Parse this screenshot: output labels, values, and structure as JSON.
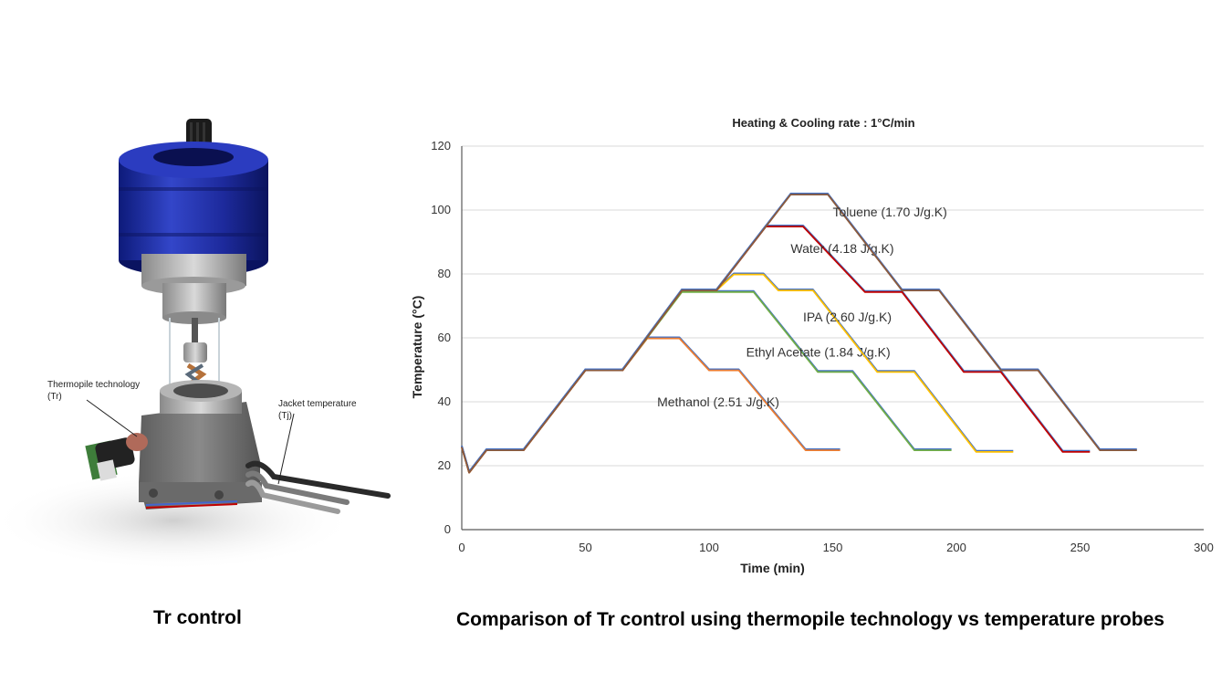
{
  "illustration": {
    "label_thermopile": [
      "Thermopile technology",
      "(Tr)"
    ],
    "label_jacket": [
      "Jacket temperature",
      "(Tj)"
    ],
    "colors": {
      "jacket_blue": "#1d2a9c",
      "body_gray": "#6e6e6e",
      "pcb_green": "#3e7d3a"
    }
  },
  "captions": {
    "left": "Tr control",
    "right": "Comparison of Tr control using thermopile technology vs temperature probes"
  },
  "chart_data": {
    "type": "line",
    "title": "Heating & Cooling rate : 1°C/min",
    "xlabel": "Time (min)",
    "ylabel": "Temperature (°C)",
    "xlim": [
      0,
      300
    ],
    "ylim": [
      0,
      120
    ],
    "xticks": [
      0,
      50,
      100,
      150,
      200,
      250,
      300
    ],
    "yticks": [
      0,
      20,
      40,
      60,
      80,
      100,
      120
    ],
    "grid": "horizontal",
    "legend": "none",
    "series": [
      {
        "name": "Methanol (2.51 J/g.K)",
        "colors": [
          "#4472c4",
          "#ed7d31"
        ],
        "label_at": [
          79,
          40
        ],
        "points": [
          [
            0,
            26
          ],
          [
            3,
            18
          ],
          [
            10,
            25
          ],
          [
            25,
            25
          ],
          [
            50,
            50
          ],
          [
            65,
            50
          ],
          [
            75,
            60
          ],
          [
            88,
            60
          ],
          [
            100,
            50
          ],
          [
            112,
            50
          ],
          [
            139,
            25
          ],
          [
            153,
            25
          ]
        ]
      },
      {
        "name": "Ethyl Acetate (1.84 J/g.K)",
        "colors": [
          "#4472c4",
          "#70ad47"
        ],
        "label_at": [
          115,
          55.6
        ],
        "points": [
          [
            0,
            26
          ],
          [
            3,
            18
          ],
          [
            10,
            25
          ],
          [
            25,
            25
          ],
          [
            50,
            50
          ],
          [
            65,
            50
          ],
          [
            89,
            74.5
          ],
          [
            101,
            74.5
          ],
          [
            118,
            74.5
          ],
          [
            144,
            49.5
          ],
          [
            158,
            49.5
          ],
          [
            183,
            25
          ],
          [
            198,
            25
          ]
        ]
      },
      {
        "name": "IPA (2.60 J/g.K)",
        "colors": [
          "#4472c4",
          "#ffc000"
        ],
        "label_at": [
          138,
          66.6
        ],
        "points": [
          [
            0,
            26
          ],
          [
            3,
            18
          ],
          [
            10,
            25
          ],
          [
            25,
            25
          ],
          [
            50,
            50
          ],
          [
            65,
            50
          ],
          [
            89,
            75
          ],
          [
            103,
            75
          ],
          [
            110,
            80
          ],
          [
            122,
            80
          ],
          [
            128,
            75
          ],
          [
            142,
            75
          ],
          [
            168,
            49.5
          ],
          [
            183,
            49.5
          ],
          [
            208,
            24.5
          ],
          [
            223,
            24.5
          ]
        ]
      },
      {
        "name": "Water (4.18 J/g.K)",
        "colors": [
          "#4472c4",
          "#c00000"
        ],
        "label_at": [
          133,
          88
        ],
        "points": [
          [
            0,
            26
          ],
          [
            3,
            18
          ],
          [
            10,
            25
          ],
          [
            25,
            25
          ],
          [
            50,
            50
          ],
          [
            65,
            50
          ],
          [
            89,
            75
          ],
          [
            103,
            75
          ],
          [
            123,
            95
          ],
          [
            138,
            95
          ],
          [
            163,
            74.5
          ],
          [
            178,
            74.5
          ],
          [
            203,
            49.5
          ],
          [
            218,
            49.5
          ],
          [
            243,
            24.5
          ],
          [
            254,
            24.5
          ]
        ]
      },
      {
        "name": "Toluene (1.70 J/g.K)",
        "colors": [
          "#4472c4",
          "#8b5a3c"
        ],
        "label_at": [
          150,
          99.5
        ],
        "points": [
          [
            0,
            26
          ],
          [
            3,
            18
          ],
          [
            10,
            25
          ],
          [
            25,
            25
          ],
          [
            50,
            50
          ],
          [
            65,
            50
          ],
          [
            89,
            75
          ],
          [
            103,
            75
          ],
          [
            133,
            105
          ],
          [
            148,
            105
          ],
          [
            178,
            75
          ],
          [
            193,
            75
          ],
          [
            218,
            50
          ],
          [
            233,
            50
          ],
          [
            258,
            25
          ],
          [
            273,
            25
          ]
        ]
      }
    ]
  }
}
